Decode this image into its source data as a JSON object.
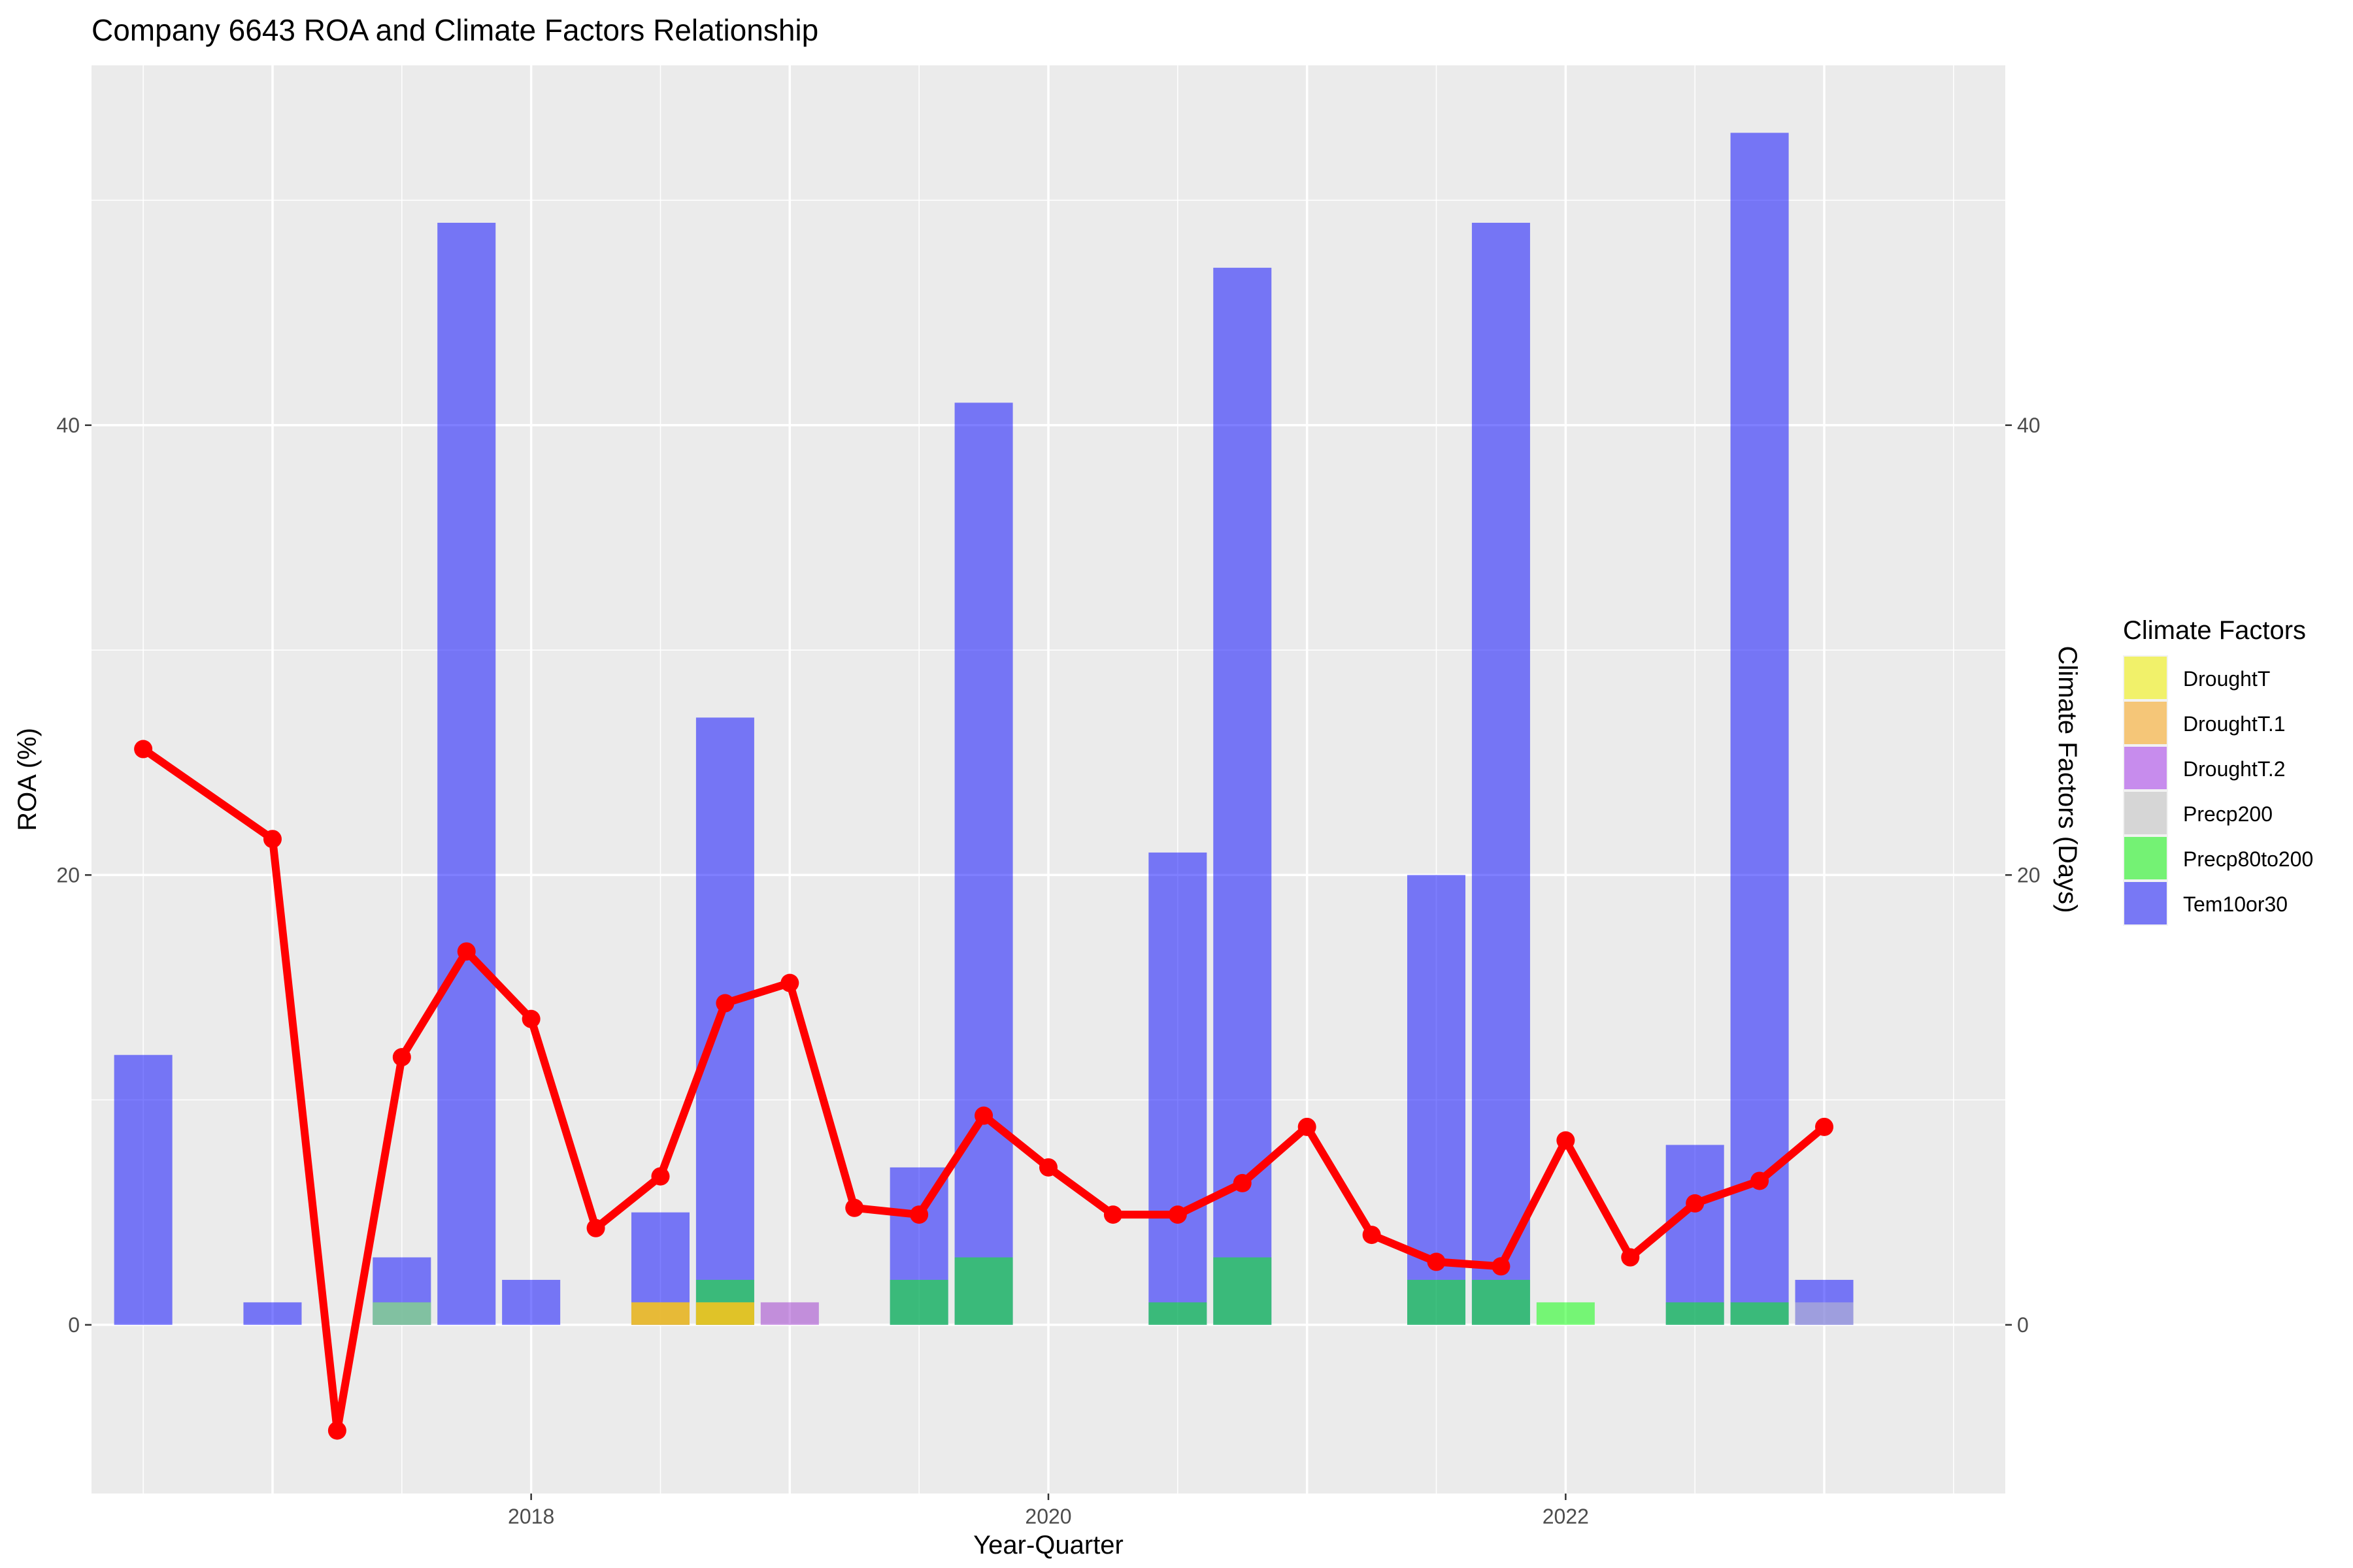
{
  "chart_data": {
    "type": "bar+line",
    "title": "Company 6643 ROA and Climate Factors Relationship",
    "xlabel": "Year-Quarter",
    "ylabel_left": "ROA (%)",
    "ylabel_right": "Climate Factors (Days)",
    "x_ticks": [
      2018,
      2020,
      2022
    ],
    "x_tick_labels": [
      "2018",
      "2020",
      "2022"
    ],
    "y_ticks": [
      0,
      20,
      40
    ],
    "y_tick_labels": [
      "0",
      "20",
      "40"
    ],
    "xlim": [
      2016.3,
      2023.7
    ],
    "ylim": [
      -7.5,
      56
    ],
    "legend": {
      "title": "Climate Factors",
      "position": "right",
      "items": [
        {
          "label": "DroughtT",
          "color": "#f1f16a"
        },
        {
          "label": "DroughtT.1",
          "color": "#f5c678"
        },
        {
          "label": "DroughtT.2",
          "color": "#c78ced"
        },
        {
          "label": "Precp200",
          "color": "#d6d6d6"
        },
        {
          "label": "Precp80to200",
          "color": "#74f274"
        },
        {
          "label": "Tem10or30",
          "color": "#7878f5"
        }
      ]
    },
    "series_colors": {
      "Tem10or30": "#0000ff",
      "Precp80to200": "#00ff00",
      "Precp200": "#c8c8c8",
      "DroughtT": "#ffff00",
      "DroughtT.1": "#ffa500",
      "DroughtT.2": "#9932cc",
      "roa_line": "#ff0000"
    },
    "bar_series": [
      {
        "name": "Tem10or30",
        "points": [
          [
            2016.5,
            12
          ],
          [
            2017.0,
            1
          ],
          [
            2017.5,
            3
          ],
          [
            2017.75,
            49
          ],
          [
            2018.0,
            2
          ],
          [
            2018.5,
            5
          ],
          [
            2018.75,
            27
          ],
          [
            2019.5,
            7
          ],
          [
            2019.75,
            41
          ],
          [
            2020.5,
            21
          ],
          [
            2020.75,
            47
          ],
          [
            2021.5,
            20
          ],
          [
            2021.75,
            49
          ],
          [
            2022.5,
            8
          ],
          [
            2022.75,
            53
          ],
          [
            2023.0,
            2
          ]
        ]
      },
      {
        "name": "Precp80to200",
        "points": [
          [
            2017.5,
            1
          ],
          [
            2018.75,
            2
          ],
          [
            2019.5,
            2
          ],
          [
            2019.75,
            3
          ],
          [
            2020.5,
            1
          ],
          [
            2020.75,
            3
          ],
          [
            2021.5,
            2
          ],
          [
            2021.75,
            2
          ],
          [
            2022.0,
            1
          ],
          [
            2022.5,
            1
          ],
          [
            2022.75,
            1
          ]
        ]
      },
      {
        "name": "Precp200",
        "points": [
          [
            2017.5,
            1
          ],
          [
            2018.5,
            1
          ],
          [
            2018.75,
            1
          ],
          [
            2023.0,
            1
          ]
        ]
      },
      {
        "name": "DroughtT",
        "points": [
          [
            2018.5,
            1
          ],
          [
            2018.75,
            1
          ]
        ]
      },
      {
        "name": "DroughtT.1",
        "points": [
          [
            2018.5,
            1
          ],
          [
            2018.75,
            1
          ]
        ]
      },
      {
        "name": "DroughtT.2",
        "points": [
          [
            2019.0,
            1
          ]
        ]
      }
    ],
    "roa_series": {
      "name": "ROA",
      "x": [
        2016.5,
        2017.0,
        2017.25,
        2017.5,
        2017.75,
        2018.0,
        2018.25,
        2018.5,
        2018.75,
        2019.0,
        2019.25,
        2019.5,
        2019.75,
        2020.0,
        2020.25,
        2020.5,
        2020.75,
        2021.0,
        2021.25,
        2021.5,
        2021.75,
        2022.0,
        2022.25,
        2022.5,
        2022.75,
        2023.0
      ],
      "y": [
        25.6,
        21.6,
        -4.7,
        11.9,
        16.6,
        13.6,
        4.3,
        6.6,
        14.3,
        15.2,
        5.2,
        4.9,
        9.3,
        7.0,
        4.9,
        4.9,
        6.3,
        8.8,
        4.0,
        2.8,
        2.6,
        8.2,
        3.0,
        5.4,
        6.4,
        8.8
      ]
    }
  }
}
